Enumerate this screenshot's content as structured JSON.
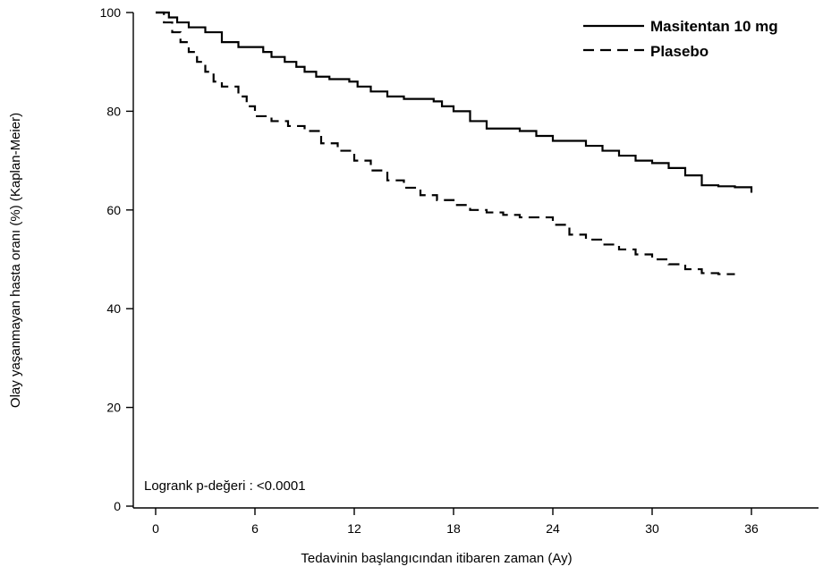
{
  "chart_data": {
    "type": "line",
    "step": true,
    "xlabel": "Tedavinin başlangıcından itibaren zaman (Ay)",
    "ylabel": "Olay yaşanmayan hasta oranı (%) (Kaplan-Meier)",
    "xlim": [
      0,
      36
    ],
    "ylim": [
      0,
      100
    ],
    "xticks": [
      0,
      6,
      12,
      18,
      24,
      30,
      36
    ],
    "yticks": [
      0,
      20,
      40,
      60,
      80,
      100
    ],
    "grid": false,
    "legend_position": "top-right",
    "annotation": "Logrank p-değeri : <0.0001",
    "series": [
      {
        "name": "Masitentan 10 mg",
        "line_style": "solid",
        "color": "#000000",
        "x": [
          0,
          0.8,
          1.3,
          2,
          3,
          4,
          5,
          6.5,
          7,
          7.8,
          8.5,
          9,
          9.7,
          10.5,
          11.7,
          12.2,
          13,
          14,
          15,
          16.8,
          17.3,
          18,
          19,
          20,
          22,
          23,
          24,
          26,
          27,
          28,
          29,
          30,
          31,
          32,
          33,
          34,
          35,
          36
        ],
        "y": [
          100,
          99,
          98,
          97,
          96,
          94,
          93,
          92,
          91,
          90,
          89,
          88,
          87,
          86.5,
          86,
          85,
          84,
          83,
          82.5,
          82,
          81,
          80,
          78,
          76.5,
          76,
          75,
          74,
          73,
          72,
          71,
          70,
          69.5,
          68.5,
          67,
          65,
          64.8,
          64.6,
          63.5
        ]
      },
      {
        "name": "Plasebo",
        "line_style": "dashed",
        "color": "#000000",
        "x": [
          0,
          0.5,
          1,
          1.5,
          2,
          2.5,
          3,
          3.5,
          4,
          5,
          5.5,
          6,
          7,
          8,
          9,
          10,
          11,
          12,
          13,
          14,
          15,
          16,
          17,
          18,
          19,
          20,
          21,
          22,
          23,
          24,
          25,
          26,
          27,
          28,
          29,
          30,
          31,
          32,
          33,
          34,
          35
        ],
        "y": [
          100,
          98,
          96,
          94,
          92,
          90,
          88,
          86,
          85,
          83,
          81,
          79,
          78,
          77,
          76,
          73.5,
          72,
          70,
          68,
          66,
          64.5,
          63,
          62,
          61,
          60,
          59.5,
          59,
          58.5,
          58.5,
          57,
          55,
          54,
          53,
          52,
          51,
          50,
          49,
          48,
          47.2,
          47,
          47
        ]
      }
    ]
  }
}
